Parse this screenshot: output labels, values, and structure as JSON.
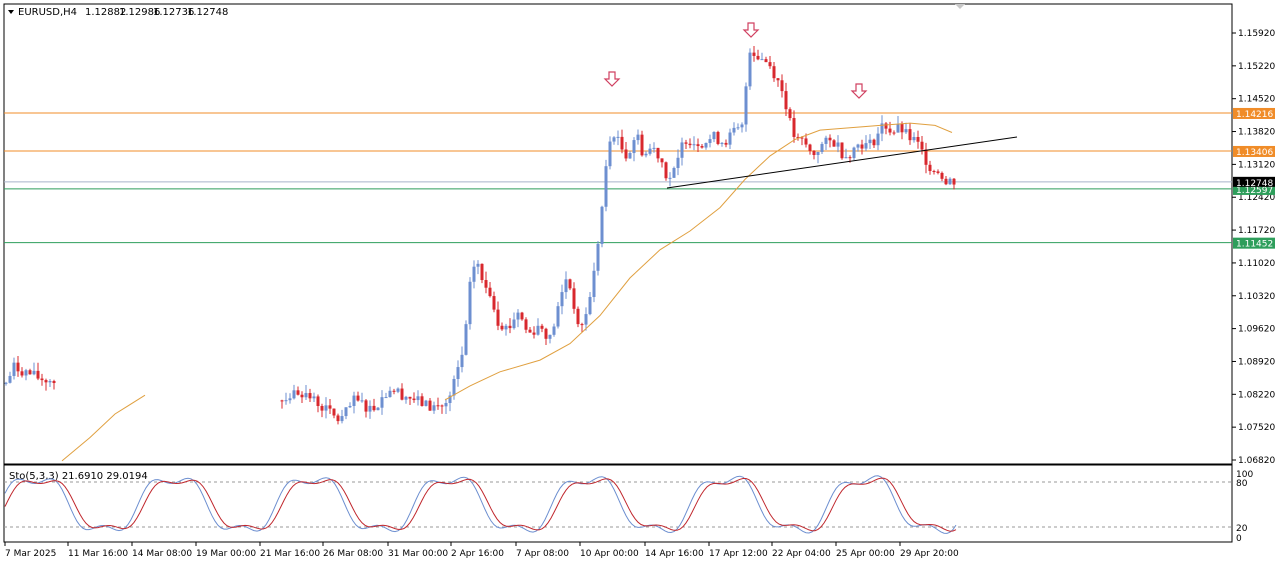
{
  "header": {
    "symbol": "EURUSD,H4",
    "open": "1.12882",
    "high": "1.12986",
    "low": "1.12736",
    "close": "1.12748"
  },
  "price_axis": {
    "ticks": [
      "1.15920",
      "1.15220",
      "1.14520",
      "1.13820",
      "1.13120",
      "1.12420",
      "1.11720",
      "1.11020",
      "1.10320",
      "1.09620",
      "1.08920",
      "1.08220",
      "1.07520",
      "1.06820"
    ],
    "min": 1.0682,
    "max": 1.1592
  },
  "hlines": [
    {
      "value": 1.14216,
      "label": "1.14216",
      "color": "#f08c28"
    },
    {
      "value": 1.13406,
      "label": "1.13406",
      "color": "#f08c28"
    },
    {
      "value": 1.12597,
      "label": "1.12597",
      "color": "#2e9e5b"
    },
    {
      "value": 1.11452,
      "label": "1.11452",
      "color": "#2e9e5b"
    }
  ],
  "current_price": {
    "value": 1.12748,
    "label": "1.12748"
  },
  "time_axis": [
    "7 Mar 2025",
    "11 Mar 16:00",
    "14 Mar 08:00",
    "19 Mar 00:00",
    "21 Mar 16:00",
    "26 Mar 08:00",
    "31 Mar 00:00",
    "2 Apr 16:00",
    "7 Apr 08:00",
    "10 Apr 00:00",
    "14 Apr 16:00",
    "17 Apr 12:00",
    "22 Apr 04:00",
    "25 Apr 00:00",
    "29 Apr 20:00"
  ],
  "indicator": {
    "label": "Sto(5,3,3) 21.6910 29.0194",
    "levels": [
      "100",
      "80",
      "20",
      "0"
    ]
  },
  "colors": {
    "bull": "#6d8fd0",
    "bear": "#d8282e",
    "ma": "#e0a040",
    "arrow": "#d04060",
    "trend": "#000000"
  },
  "arrows": [
    "down-arrow-icon",
    "down-arrow-icon",
    "down-arrow-icon"
  ]
}
